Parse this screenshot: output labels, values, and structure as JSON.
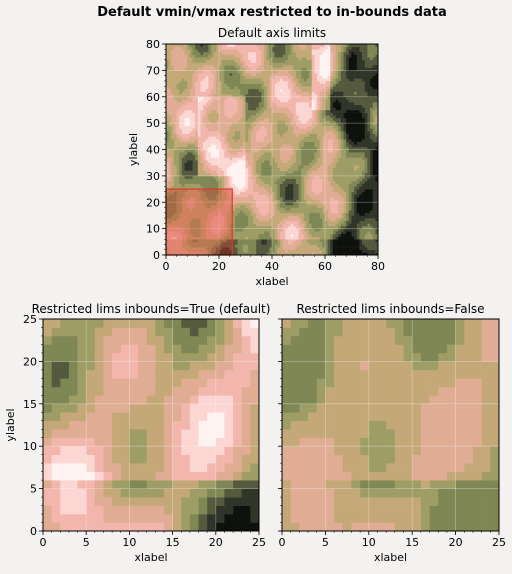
{
  "chart_data": {
    "suptitle": "Default vmin/vmax restricted to in-bounds data",
    "colormap": [
      "#0e110c",
      "#303529",
      "#55593e",
      "#7f8755",
      "#9e9d66",
      "#c4a878",
      "#e0ad94",
      "#f2b6ad",
      "#fbd6d2",
      "#fff3f2"
    ],
    "grid_color": "#ffffff",
    "highlight_color": "#e0392b",
    "panels": [
      {
        "type": "heatmap",
        "title": "Default axis limits",
        "xlabel": "xlabel",
        "ylabel": "ylabel",
        "xlim": [
          0,
          80
        ],
        "ylim": [
          0,
          80
        ],
        "xticks": [
          0,
          20,
          40,
          60,
          80
        ],
        "yticks": [
          0,
          10,
          20,
          30,
          40,
          50,
          60,
          70,
          80
        ],
        "xtick_labels": [
          "0",
          "20",
          "40",
          "60",
          "80"
        ],
        "ytick_labels": [
          "0",
          "10",
          "20",
          "30",
          "40",
          "50",
          "60",
          "70",
          "80"
        ],
        "highlight_rect": {
          "x": [
            0,
            25
          ],
          "y": [
            0,
            25
          ]
        },
        "grid": true
      },
      {
        "type": "heatmap",
        "title": "Restricted lims inbounds=True (default)",
        "xlabel": "xlabel",
        "ylabel": "ylabel",
        "xlim": [
          0,
          25
        ],
        "ylim": [
          0,
          25
        ],
        "xticks": [
          0,
          5,
          10,
          15,
          20,
          25
        ],
        "yticks": [
          0,
          5,
          10,
          15,
          20,
          25
        ],
        "xtick_labels": [
          "0",
          "5",
          "10",
          "15",
          "20",
          "25"
        ],
        "ytick_labels": [
          "0",
          "5",
          "10",
          "15",
          "20",
          "25"
        ],
        "grid": true
      },
      {
        "type": "heatmap",
        "title": "Restricted lims inbounds=False",
        "xlabel": "xlabel",
        "ylabel": "",
        "xlim": [
          0,
          25
        ],
        "ylim": [
          0,
          25
        ],
        "xticks": [
          0,
          5,
          10,
          15,
          20,
          25
        ],
        "yticks": [
          0,
          5,
          10,
          15,
          20,
          25
        ],
        "xtick_labels": [
          "0",
          "5",
          "10",
          "15",
          "20",
          "25"
        ],
        "ytick_labels": [],
        "grid": true
      }
    ]
  }
}
